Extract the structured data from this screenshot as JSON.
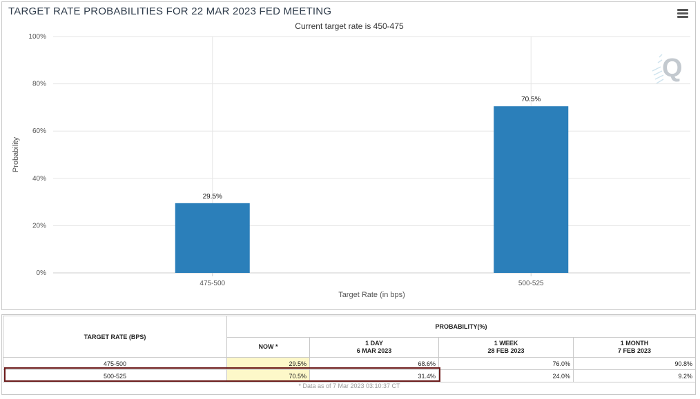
{
  "chart_data": {
    "type": "bar",
    "title": "TARGET RATE PROBABILITIES FOR 22 MAR 2023 FED MEETING",
    "subtitle": "Current target rate is 450-475",
    "categories": [
      "475-500",
      "500-525"
    ],
    "values": [
      29.5,
      70.5
    ],
    "data_labels": [
      "29.5%",
      "70.5%"
    ],
    "xlabel": "Target Rate (in bps)",
    "ylabel": "Probability",
    "ylim": [
      0,
      100
    ],
    "yticks": [
      0,
      20,
      40,
      60,
      80,
      100
    ],
    "ytick_labels": [
      "0%",
      "20%",
      "40%",
      "60%",
      "80%",
      "100%"
    ],
    "grid": true,
    "bar_color": "#2b7fba"
  },
  "watermark_icon": "q-logo-icon",
  "menu_icon": "hamburger-menu-icon",
  "table": {
    "rate_header": "TARGET RATE (BPS)",
    "probability_header": "PROBABILITY(%)",
    "columns": [
      {
        "line1": "NOW *",
        "line2": ""
      },
      {
        "line1": "1 DAY",
        "line2": "6 MAR 2023"
      },
      {
        "line1": "1 WEEK",
        "line2": "28 FEB 2023"
      },
      {
        "line1": "1 MONTH",
        "line2": "7 FEB 2023"
      }
    ],
    "rows": [
      {
        "rate": "475-500",
        "now": "29.5%",
        "day": "68.6%",
        "week": "76.0%",
        "month": "90.8%"
      },
      {
        "rate": "500-525",
        "now": "70.5%",
        "day": "31.4%",
        "week": "24.0%",
        "month": "9.2%"
      }
    ],
    "footnote": "* Data as of 7 Mar 2023 03:10:37 CT",
    "highlight_color": "#fdf8c9",
    "selection_color": "#6b1a1a"
  }
}
